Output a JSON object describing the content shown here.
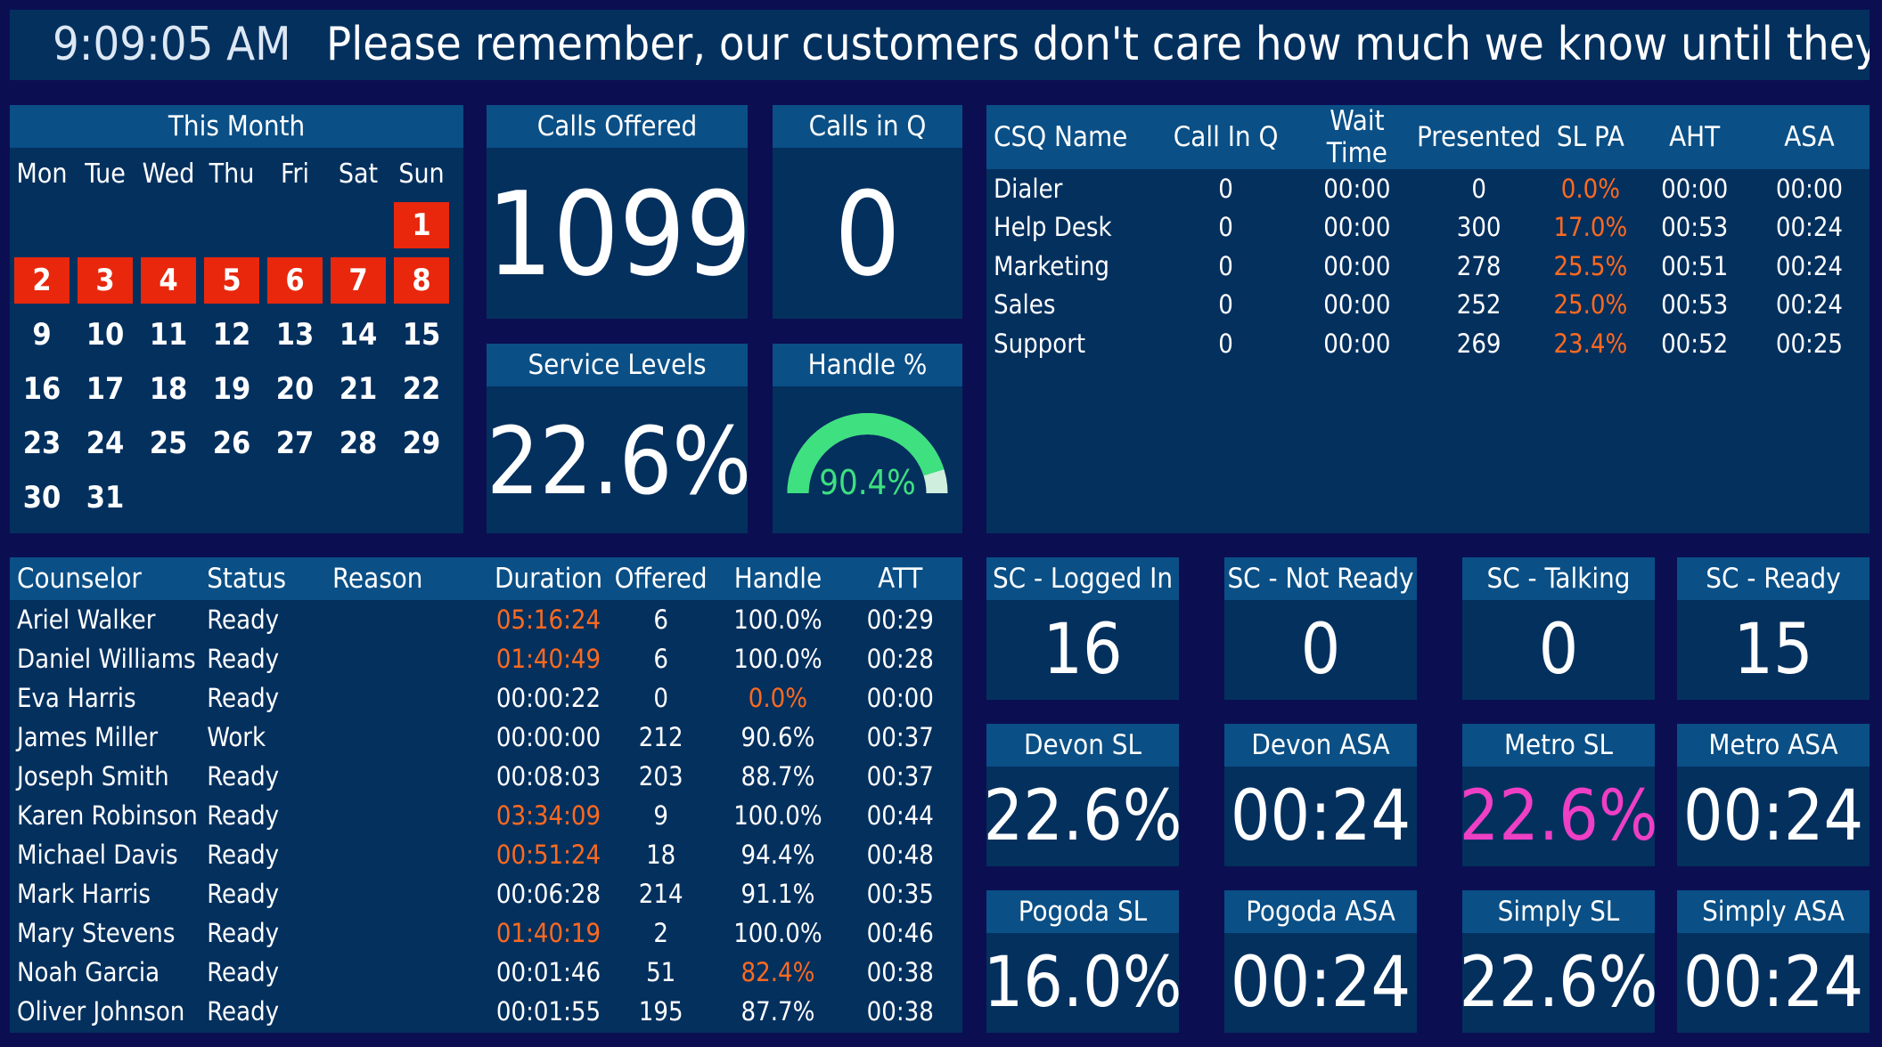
{
  "ticker": {
    "time": "9:09:05 AM",
    "message": "Please remember, our customers don't care how much we know until they know how much we care."
  },
  "calendar": {
    "title": "This Month",
    "weekdays": [
      "Mon",
      "Tue",
      "Wed",
      "Thu",
      "Fri",
      "Sat",
      "Sun"
    ],
    "highlighted_days": [
      1,
      2,
      3,
      4,
      5,
      6,
      7,
      8
    ]
  },
  "calls_offered": {
    "title": "Calls Offered",
    "value": "1099"
  },
  "calls_in_q": {
    "title": "Calls in Q",
    "value": "0"
  },
  "service_levels": {
    "title": "Service Levels",
    "value": "22.6%"
  },
  "handle": {
    "title": "Handle %",
    "value": "90.4%",
    "percent": 90.4
  },
  "csq": {
    "headers": [
      "CSQ Name",
      "Call In Q",
      "Wait Time",
      "Presented",
      "SL PA",
      "AHT",
      "ASA"
    ],
    "rows": [
      [
        "Dialer",
        "0",
        "00:00",
        "0",
        "0.0%",
        "00:00",
        "00:00"
      ],
      [
        "Help Desk",
        "0",
        "00:00",
        "300",
        "17.0%",
        "00:53",
        "00:24"
      ],
      [
        "Marketing",
        "0",
        "00:00",
        "278",
        "25.5%",
        "00:51",
        "00:24"
      ],
      [
        "Sales",
        "0",
        "00:00",
        "252",
        "25.0%",
        "00:53",
        "00:24"
      ],
      [
        "Support",
        "0",
        "00:00",
        "269",
        "23.4%",
        "00:52",
        "00:25"
      ]
    ]
  },
  "counselors": {
    "headers": [
      "Counselor",
      "Status",
      "Reason",
      "Duration",
      "Offered",
      "Handle",
      "ATT"
    ],
    "rows": [
      [
        "Ariel Walker",
        "Ready",
        "",
        "05:16:24",
        "6",
        "100.0%",
        "00:29"
      ],
      [
        "Daniel Williams",
        "Ready",
        "",
        "01:40:49",
        "6",
        "100.0%",
        "00:28"
      ],
      [
        "Eva Harris",
        "Ready",
        "",
        "00:00:22",
        "0",
        "0.0%",
        "00:00"
      ],
      [
        "James Miller",
        "Work",
        "",
        "00:00:00",
        "212",
        "90.6%",
        "00:37"
      ],
      [
        "Joseph Smith",
        "Ready",
        "",
        "00:08:03",
        "203",
        "88.7%",
        "00:37"
      ],
      [
        "Karen Robinson",
        "Ready",
        "",
        "03:34:09",
        "9",
        "100.0%",
        "00:44"
      ],
      [
        "Michael Davis",
        "Ready",
        "",
        "00:51:24",
        "18",
        "94.4%",
        "00:48"
      ],
      [
        "Mark Harris",
        "Ready",
        "",
        "00:06:28",
        "214",
        "91.1%",
        "00:35"
      ],
      [
        "Mary Stevens",
        "Ready",
        "",
        "01:40:19",
        "2",
        "100.0%",
        "00:46"
      ],
      [
        "Noah Garcia",
        "Ready",
        "",
        "00:01:46",
        "51",
        "82.4%",
        "00:38"
      ],
      [
        "Oliver Johnson",
        "Ready",
        "",
        "00:01:55",
        "195",
        "87.7%",
        "00:38"
      ]
    ],
    "orange_duration_rows": [
      0,
      1,
      5,
      6,
      8
    ],
    "orange_handle_rows": [
      2,
      9
    ]
  },
  "tiles": [
    {
      "title": "SC - Logged In",
      "value": "16"
    },
    {
      "title": "SC - Not Ready",
      "value": "0"
    },
    {
      "title": "SC - Talking",
      "value": "0"
    },
    {
      "title": "SC - Ready",
      "value": "15"
    },
    {
      "title": "Devon SL",
      "value": "22.6%"
    },
    {
      "title": "Devon ASA",
      "value": "00:24"
    },
    {
      "title": "Metro SL",
      "value": "22.6%",
      "color": "#ee3fc5"
    },
    {
      "title": "Metro ASA",
      "value": "00:24"
    },
    {
      "title": "Pogoda SL",
      "value": "16.0%"
    },
    {
      "title": "Pogoda ASA",
      "value": "00:24"
    },
    {
      "title": "Simply SL",
      "value": "22.6%"
    },
    {
      "title": "Simply ASA",
      "value": "00:24"
    }
  ],
  "colors": {
    "background": "#0b0f52",
    "panel": "#04305e",
    "header": "#0a4f86",
    "calendar_highlight": "#e8270d",
    "warning_text": "#ff6a1f",
    "gauge_fill": "#3ee080",
    "gauge_track": "#cfeede"
  }
}
